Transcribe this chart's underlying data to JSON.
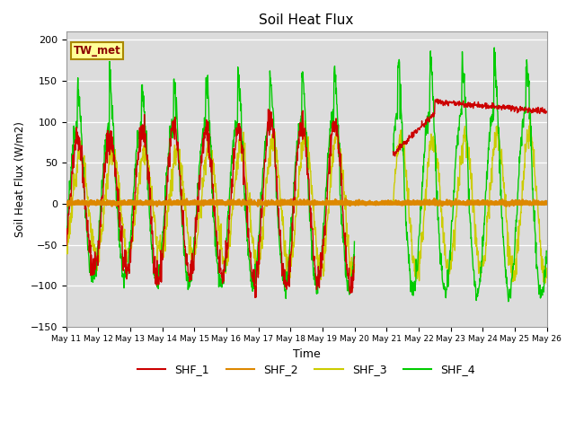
{
  "title": "Soil Heat Flux",
  "xlabel": "Time",
  "ylabel": "Soil Heat Flux (W/m2)",
  "ylim": [
    -150,
    210
  ],
  "yticks": [
    -150,
    -100,
    -50,
    0,
    50,
    100,
    150,
    200
  ],
  "colors": {
    "SHF_1": "#cc0000",
    "SHF_2": "#dd8800",
    "SHF_3": "#cccc00",
    "SHF_4": "#00cc00"
  },
  "bg_color": "#e8e8e8",
  "plot_bg": "#dcdcdc",
  "annotation_label": "TW_met",
  "annotation_color": "#8b0000",
  "annotation_bg": "#ffff99",
  "annotation_border": "#aa8800"
}
